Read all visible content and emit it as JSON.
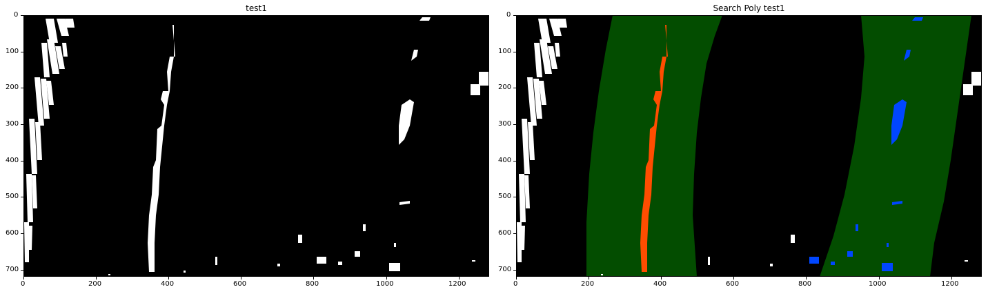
{
  "panels": [
    {
      "title": "test1"
    },
    {
      "title": "Search Poly test1"
    }
  ],
  "x_ticks": [
    "0",
    "200",
    "400",
    "600",
    "800",
    "1000",
    "1200"
  ],
  "y_ticks": [
    "0",
    "100",
    "200",
    "300",
    "400",
    "500",
    "600",
    "700"
  ],
  "colors": {
    "background": "#000000",
    "lane_pixels": "#ffffff",
    "left_lane": "#ff4d00",
    "right_lane": "#0046ff",
    "search_region": "#034d00"
  }
}
